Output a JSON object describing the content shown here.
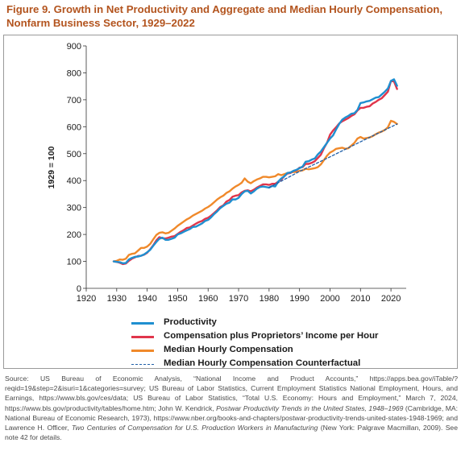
{
  "figure": {
    "title_line1": "Figure 9. Growth in Net Productivity and Aggregate and Median Hourly Compensation,",
    "title_line2": "Nonfarm Business Sector, 1929–2022"
  },
  "chart_data": {
    "type": "line",
    "title": "Figure 9. Growth in Net Productivity and Aggregate and Median Hourly Compensation, Nonfarm Business Sector, 1929–2022",
    "xlabel": "",
    "ylabel": "1929 = 100",
    "xlim": [
      1920,
      2025
    ],
    "ylim": [
      0,
      900
    ],
    "xticks": [
      1920,
      1930,
      1940,
      1950,
      1960,
      1970,
      1980,
      1990,
      2000,
      2010,
      2020
    ],
    "yticks": [
      0,
      100,
      200,
      300,
      400,
      500,
      600,
      700,
      800,
      900
    ],
    "grid": false,
    "legend_position": "bottom",
    "series": [
      {
        "name": "Productivity",
        "color": "#1f8fd0",
        "style": "solid",
        "points": [
          [
            1929,
            100
          ],
          [
            1930,
            98
          ],
          [
            1931,
            97
          ],
          [
            1932,
            93
          ],
          [
            1933,
            94
          ],
          [
            1934,
            107
          ],
          [
            1935,
            113
          ],
          [
            1936,
            117
          ],
          [
            1937,
            118
          ],
          [
            1938,
            121
          ],
          [
            1939,
            126
          ],
          [
            1940,
            134
          ],
          [
            1941,
            143
          ],
          [
            1942,
            158
          ],
          [
            1943,
            172
          ],
          [
            1944,
            184
          ],
          [
            1945,
            188
          ],
          [
            1946,
            180
          ],
          [
            1947,
            180
          ],
          [
            1948,
            184
          ],
          [
            1949,
            188
          ],
          [
            1950,
            200
          ],
          [
            1951,
            204
          ],
          [
            1952,
            210
          ],
          [
            1953,
            215
          ],
          [
            1954,
            220
          ],
          [
            1955,
            228
          ],
          [
            1956,
            229
          ],
          [
            1957,
            235
          ],
          [
            1958,
            241
          ],
          [
            1959,
            250
          ],
          [
            1960,
            254
          ],
          [
            1961,
            264
          ],
          [
            1962,
            276
          ],
          [
            1963,
            286
          ],
          [
            1964,
            298
          ],
          [
            1965,
            306
          ],
          [
            1966,
            314
          ],
          [
            1967,
            318
          ],
          [
            1968,
            330
          ],
          [
            1969,
            330
          ],
          [
            1970,
            336
          ],
          [
            1971,
            350
          ],
          [
            1972,
            360
          ],
          [
            1973,
            362
          ],
          [
            1974,
            352
          ],
          [
            1975,
            360
          ],
          [
            1976,
            370
          ],
          [
            1977,
            376
          ],
          [
            1978,
            378
          ],
          [
            1979,
            376
          ],
          [
            1980,
            374
          ],
          [
            1981,
            380
          ],
          [
            1982,
            378
          ],
          [
            1983,
            396
          ],
          [
            1984,
            408
          ],
          [
            1985,
            416
          ],
          [
            1986,
            428
          ],
          [
            1987,
            430
          ],
          [
            1988,
            436
          ],
          [
            1989,
            440
          ],
          [
            1990,
            446
          ],
          [
            1991,
            452
          ],
          [
            1992,
            470
          ],
          [
            1993,
            472
          ],
          [
            1994,
            478
          ],
          [
            1995,
            482
          ],
          [
            1996,
            497
          ],
          [
            1997,
            508
          ],
          [
            1998,
            524
          ],
          [
            1999,
            540
          ],
          [
            2000,
            556
          ],
          [
            2001,
            568
          ],
          [
            2002,
            590
          ],
          [
            2003,
            610
          ],
          [
            2004,
            626
          ],
          [
            2005,
            634
          ],
          [
            2006,
            640
          ],
          [
            2007,
            648
          ],
          [
            2008,
            650
          ],
          [
            2009,
            662
          ],
          [
            2010,
            688
          ],
          [
            2011,
            690
          ],
          [
            2012,
            694
          ],
          [
            2013,
            696
          ],
          [
            2014,
            702
          ],
          [
            2015,
            708
          ],
          [
            2016,
            710
          ],
          [
            2017,
            720
          ],
          [
            2018,
            730
          ],
          [
            2019,
            742
          ],
          [
            2020,
            770
          ],
          [
            2021,
            776
          ],
          [
            2022,
            752
          ]
        ]
      },
      {
        "name": "Compensation plus Proprietors' Income per Hour",
        "color": "#e0354b",
        "style": "solid",
        "points": [
          [
            1929,
            100
          ],
          [
            1930,
            98
          ],
          [
            1931,
            95
          ],
          [
            1932,
            90
          ],
          [
            1933,
            92
          ],
          [
            1934,
            102
          ],
          [
            1935,
            110
          ],
          [
            1936,
            115
          ],
          [
            1937,
            120
          ],
          [
            1938,
            121
          ],
          [
            1939,
            125
          ],
          [
            1940,
            132
          ],
          [
            1941,
            145
          ],
          [
            1942,
            160
          ],
          [
            1943,
            178
          ],
          [
            1944,
            190
          ],
          [
            1945,
            186
          ],
          [
            1946,
            185
          ],
          [
            1947,
            188
          ],
          [
            1948,
            192
          ],
          [
            1949,
            194
          ],
          [
            1950,
            202
          ],
          [
            1951,
            210
          ],
          [
            1952,
            216
          ],
          [
            1953,
            224
          ],
          [
            1954,
            226
          ],
          [
            1955,
            233
          ],
          [
            1956,
            240
          ],
          [
            1957,
            246
          ],
          [
            1958,
            250
          ],
          [
            1959,
            258
          ],
          [
            1960,
            262
          ],
          [
            1961,
            270
          ],
          [
            1962,
            280
          ],
          [
            1963,
            290
          ],
          [
            1964,
            302
          ],
          [
            1965,
            308
          ],
          [
            1966,
            322
          ],
          [
            1967,
            328
          ],
          [
            1968,
            340
          ],
          [
            1969,
            344
          ],
          [
            1970,
            346
          ],
          [
            1971,
            356
          ],
          [
            1972,
            362
          ],
          [
            1973,
            364
          ],
          [
            1974,
            360
          ],
          [
            1975,
            366
          ],
          [
            1976,
            374
          ],
          [
            1977,
            380
          ],
          [
            1978,
            386
          ],
          [
            1979,
            386
          ],
          [
            1980,
            384
          ],
          [
            1981,
            388
          ],
          [
            1982,
            388
          ],
          [
            1983,
            396
          ],
          [
            1984,
            404
          ],
          [
            1985,
            416
          ],
          [
            1986,
            426
          ],
          [
            1987,
            428
          ],
          [
            1988,
            436
          ],
          [
            1989,
            438
          ],
          [
            1990,
            448
          ],
          [
            1991,
            450
          ],
          [
            1992,
            462
          ],
          [
            1993,
            462
          ],
          [
            1994,
            466
          ],
          [
            1995,
            472
          ],
          [
            1996,
            484
          ],
          [
            1997,
            496
          ],
          [
            1998,
            520
          ],
          [
            1999,
            540
          ],
          [
            2000,
            570
          ],
          [
            2001,
            586
          ],
          [
            2002,
            598
          ],
          [
            2003,
            612
          ],
          [
            2004,
            620
          ],
          [
            2005,
            626
          ],
          [
            2006,
            632
          ],
          [
            2007,
            640
          ],
          [
            2008,
            646
          ],
          [
            2009,
            660
          ],
          [
            2010,
            670
          ],
          [
            2011,
            670
          ],
          [
            2012,
            674
          ],
          [
            2013,
            676
          ],
          [
            2014,
            686
          ],
          [
            2015,
            692
          ],
          [
            2016,
            700
          ],
          [
            2017,
            706
          ],
          [
            2018,
            718
          ],
          [
            2019,
            730
          ],
          [
            2020,
            770
          ],
          [
            2021,
            768
          ],
          [
            2022,
            740
          ]
        ]
      },
      {
        "name": "Median Hourly Compensation",
        "color": "#f0892a",
        "style": "solid",
        "points": [
          [
            1929,
            100
          ],
          [
            1930,
            102
          ],
          [
            1931,
            107
          ],
          [
            1932,
            106
          ],
          [
            1933,
            110
          ],
          [
            1934,
            124
          ],
          [
            1935,
            128
          ],
          [
            1936,
            130
          ],
          [
            1937,
            140
          ],
          [
            1938,
            150
          ],
          [
            1939,
            150
          ],
          [
            1940,
            155
          ],
          [
            1941,
            165
          ],
          [
            1942,
            182
          ],
          [
            1943,
            198
          ],
          [
            1944,
            206
          ],
          [
            1945,
            208
          ],
          [
            1946,
            204
          ],
          [
            1947,
            206
          ],
          [
            1948,
            214
          ],
          [
            1949,
            222
          ],
          [
            1950,
            232
          ],
          [
            1951,
            240
          ],
          [
            1952,
            248
          ],
          [
            1953,
            256
          ],
          [
            1954,
            262
          ],
          [
            1955,
            270
          ],
          [
            1956,
            276
          ],
          [
            1957,
            282
          ],
          [
            1958,
            288
          ],
          [
            1959,
            296
          ],
          [
            1960,
            302
          ],
          [
            1961,
            310
          ],
          [
            1962,
            320
          ],
          [
            1963,
            330
          ],
          [
            1964,
            338
          ],
          [
            1965,
            344
          ],
          [
            1966,
            354
          ],
          [
            1967,
            360
          ],
          [
            1968,
            370
          ],
          [
            1969,
            378
          ],
          [
            1970,
            384
          ],
          [
            1971,
            392
          ],
          [
            1972,
            408
          ],
          [
            1973,
            396
          ],
          [
            1974,
            390
          ],
          [
            1975,
            398
          ],
          [
            1976,
            404
          ],
          [
            1977,
            408
          ],
          [
            1978,
            414
          ],
          [
            1979,
            414
          ],
          [
            1980,
            412
          ],
          [
            1981,
            414
          ],
          [
            1982,
            416
          ],
          [
            1983,
            424
          ],
          [
            1984,
            420
          ],
          [
            1985,
            424
          ],
          [
            1986,
            428
          ],
          [
            1987,
            430
          ],
          [
            1988,
            432
          ],
          [
            1989,
            432
          ],
          [
            1990,
            436
          ],
          [
            1991,
            438
          ],
          [
            1992,
            444
          ],
          [
            1993,
            442
          ],
          [
            1994,
            444
          ],
          [
            1995,
            446
          ],
          [
            1996,
            450
          ],
          [
            1997,
            460
          ],
          [
            1998,
            476
          ],
          [
            1999,
            492
          ],
          [
            2000,
            504
          ],
          [
            2001,
            510
          ],
          [
            2002,
            518
          ],
          [
            2003,
            520
          ],
          [
            2004,
            522
          ],
          [
            2005,
            518
          ],
          [
            2006,
            520
          ],
          [
            2007,
            530
          ],
          [
            2008,
            540
          ],
          [
            2009,
            556
          ],
          [
            2010,
            562
          ],
          [
            2011,
            556
          ],
          [
            2012,
            558
          ],
          [
            2013,
            560
          ],
          [
            2014,
            565
          ],
          [
            2015,
            572
          ],
          [
            2016,
            578
          ],
          [
            2017,
            582
          ],
          [
            2018,
            588
          ],
          [
            2019,
            598
          ],
          [
            2020,
            622
          ],
          [
            2021,
            618
          ],
          [
            2022,
            610
          ]
        ]
      },
      {
        "name": "Median Hourly Compensation Counterfactual",
        "color": "#1f5fa8",
        "style": "dashed",
        "points": [
          [
            1980,
            374
          ],
          [
            1990,
            434
          ],
          [
            2000,
            488
          ],
          [
            2010,
            544
          ],
          [
            2022,
            610
          ]
        ]
      }
    ]
  },
  "legend": [
    {
      "label": "Productivity",
      "color": "#1f8fd0",
      "style": "solid"
    },
    {
      "label": "Compensation plus Proprietors’ Income per Hour",
      "color": "#e0354b",
      "style": "solid"
    },
    {
      "label": "Median Hourly Compensation",
      "color": "#f0892a",
      "style": "solid"
    },
    {
      "label": "Median Hourly Compensation Counterfactual",
      "color": "#1f5fa8",
      "style": "dashed"
    }
  ],
  "source": {
    "p1": "Source: US Bureau of Economic Analysis, “National Income and Product Accounts,” https://apps.bea.gov/iTable/?reqid=19&step=2&isuri=1&categories=survey; US Bureau of Labor Statistics, Current Employment Statistics National Employment, Hours, and Earnings, https://www.bls.gov/ces/data; US Bureau of Labor Statistics, “Total U.S. Economy: Hours and Employment,” March 7, 2024, https://www.bls.gov/productivity/tables/home.htm; John W. Kendrick, ",
    "i1": "Postwar Productivity Trends in the United States, 1948–1969",
    "p2": " (Cambridge, MA: National Bureau of Economic Research, 1973), https://www.nber.org/books-and-chapters/postwar-productivity-trends-united-states-1948-1969; and Lawrence H. Officer, ",
    "i2": "Two Centuries of Compensation for U.S. Production Workers in Manufacturing",
    "p3": " (New York: Palgrave Macmillan, 2009). See note 42 for details."
  }
}
